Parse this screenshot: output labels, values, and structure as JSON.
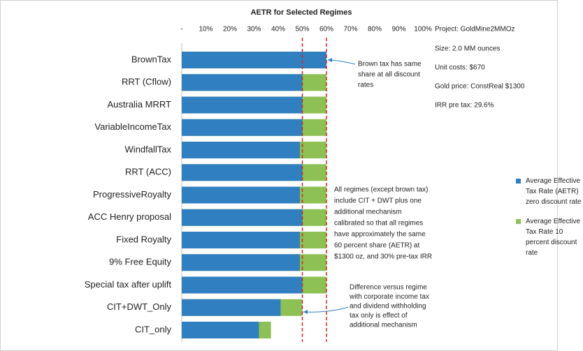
{
  "chart_data": {
    "type": "overlap-hbar",
    "title": "AETR for Selected Regimes",
    "categories": [
      "BrownTax",
      "RRT (Cflow)",
      "Australia MRRT",
      "VariableIncomeTax",
      "WindfallTax",
      "RRT (ACC)",
      "ProgressiveRoyalty",
      "ACC Henry proposal",
      "Fixed Royalty",
      "9% Free Equity",
      "Special tax after uplift",
      "CIT+DWT_Only",
      "CIT_only"
    ],
    "series": [
      {
        "name": "Average Effective Tax Rate 10 percent discount rate",
        "color": "#8dc153",
        "values": [
          60,
          60,
          60,
          60,
          60,
          60,
          60,
          60,
          60,
          60,
          60,
          50,
          37
        ]
      },
      {
        "name": "Average Effective Tax Rate (AETR) zero discount rate",
        "color": "#2f7fc1",
        "values": [
          60,
          50,
          50,
          50,
          49,
          50,
          49,
          50,
          49,
          49,
          50,
          41,
          32
        ]
      }
    ],
    "xlim": [
      0,
      100
    ],
    "xticks": [
      {
        "value": 0,
        "label": "-"
      },
      {
        "value": 10,
        "label": "10%"
      },
      {
        "value": 20,
        "label": "20%"
      },
      {
        "value": 30,
        "label": "30%"
      },
      {
        "value": 40,
        "label": "40%"
      },
      {
        "value": 50,
        "label": "50%"
      },
      {
        "value": 60,
        "label": "60%"
      },
      {
        "value": 70,
        "label": "70%"
      },
      {
        "value": 80,
        "label": "80%"
      },
      {
        "value": 90,
        "label": "90%"
      },
      {
        "value": 100,
        "label": "100%"
      }
    ],
    "reference_lines": [
      50,
      60
    ],
    "info": [
      "Project: GoldMine2MMOz",
      "Size: 2.0 MM ounces",
      "Unit costs: $670",
      "Gold price: ConstReal $1300",
      "IRR pre tax: 29.6%"
    ],
    "annotations": [
      [
        "Brown tax has same",
        "share at all discount",
        "rates"
      ],
      [
        "All regimes (except brown tax)",
        "include CIT + DWT plus one",
        "additional mechanism",
        "calibrated so that all regimes",
        "have approximately the same",
        "60 percent share (AETR) at",
        "$1300 oz, and 30% pre-tax IRR"
      ],
      [
        "Difference versus regime",
        "with corporate income tax",
        "and dividend withholding",
        "tax only is effect of",
        "additional mechanism"
      ]
    ]
  }
}
